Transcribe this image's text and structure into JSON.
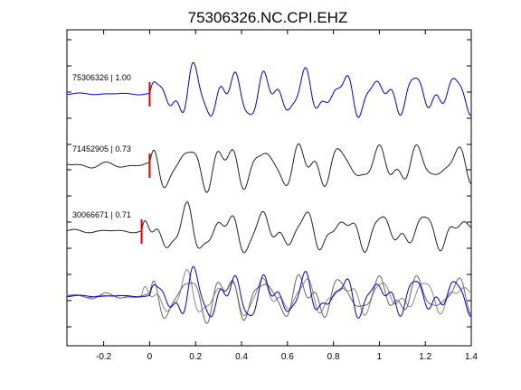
{
  "chart_data": {
    "type": "line",
    "title": "75306326.NC.CPI.EHZ",
    "xlabel": "",
    "ylabel": "",
    "xlim": [
      -0.36,
      1.4
    ],
    "x_ticks": [
      -0.2,
      0,
      0.2,
      0.4,
      0.6,
      0.8,
      1,
      1.2,
      1.4
    ],
    "x_tick_labels": [
      "-0.2",
      "0",
      "0.2",
      "0.4",
      "0.6",
      "0.8",
      "1",
      "1.2",
      "1.4"
    ],
    "grid": false,
    "legend": "none",
    "colors": {
      "reference": "#0000cc",
      "trace": "#222222",
      "overlay": "#888888",
      "pick": "#dd0000"
    },
    "traces": [
      {
        "label": "75306326 | 1.00",
        "pick_time": 0.0,
        "color": "#0000cc"
      },
      {
        "label": "71452905 | 0.73",
        "pick_time": 0.0,
        "color": "#222222"
      },
      {
        "label": "30066671 | 0.71",
        "pick_time": -0.035,
        "color": "#222222"
      }
    ]
  }
}
